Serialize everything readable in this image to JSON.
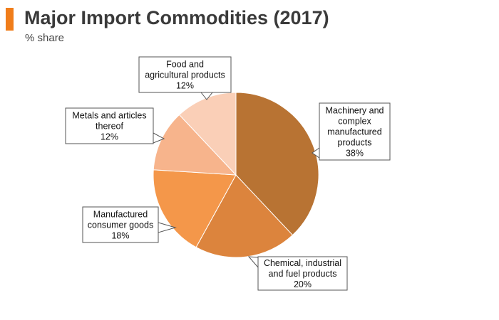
{
  "header": {
    "title": "Major Import Commodities (2017)",
    "subtitle": "% share",
    "accent_color": "#f07d1a"
  },
  "chart_data": {
    "type": "pie",
    "title": "Major Import Commodities (2017)",
    "subtitle": "% share",
    "legend": "none",
    "slices": [
      {
        "label": "Machinery and complex manufactured products",
        "label_lines": [
          "Machinery and",
          "complex",
          "manufactured",
          "products"
        ],
        "value": 38,
        "value_label": "38%",
        "color": "#b87333"
      },
      {
        "label": "Chemical, industrial and fuel products",
        "label_lines": [
          "Chemical, industrial",
          "and fuel products"
        ],
        "value": 20,
        "value_label": "20%",
        "color": "#dc843d"
      },
      {
        "label": "Manufactured consumer goods",
        "label_lines": [
          "Manufactured",
          "consumer goods"
        ],
        "value": 18,
        "value_label": "18%",
        "color": "#f4974a"
      },
      {
        "label": "Metals and articles thereof",
        "label_lines": [
          "Metals and articles",
          "thereof"
        ],
        "value": 12,
        "value_label": "12%",
        "color": "#f7b48c"
      },
      {
        "label": "Food and agricultural products",
        "label_lines": [
          "Food and",
          "agricultural products"
        ],
        "value": 12,
        "value_label": "12%",
        "color": "#facfb7"
      }
    ]
  }
}
